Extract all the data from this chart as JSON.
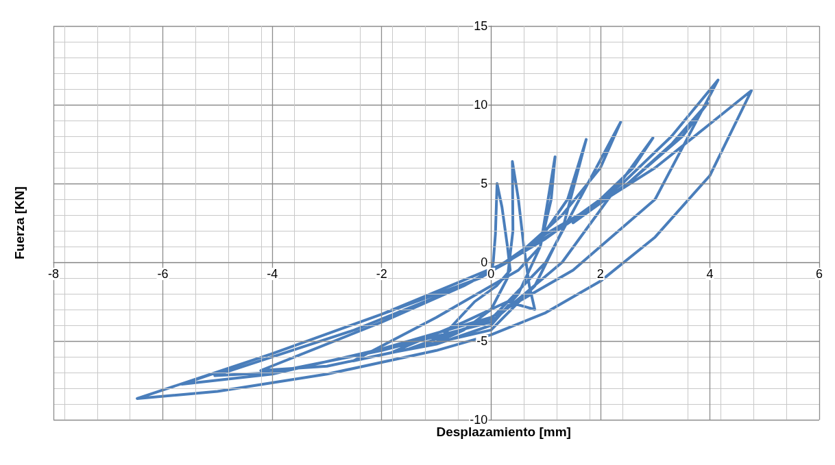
{
  "chart_data": {
    "type": "line",
    "xlabel": "Desplazamiento [mm]",
    "ylabel": "Fuerza [KN]",
    "xlim": [
      -8,
      6
    ],
    "xticks": [
      -8,
      -6,
      -4,
      -2,
      0,
      2,
      4,
      6
    ],
    "ylim": [
      -10,
      15
    ],
    "yticks": [
      -10,
      -5,
      0,
      5,
      10,
      15
    ],
    "grid": true,
    "marker": "none",
    "line_style": "solid",
    "series": [
      {
        "color": "#4a7ebb",
        "x": [
          0,
          0.04,
          0.08,
          0.11,
          0.2,
          0.3,
          0.35,
          0.1,
          -0.3,
          -1.0,
          -0.5,
          0,
          0.3,
          0.4,
          0.39,
          0.5,
          0.6,
          0.7,
          0.8,
          0.3,
          -0.5,
          -1.83,
          -1,
          0,
          0.5,
          0.9,
          1.17,
          1.1,
          0.9,
          0.5,
          0,
          -1,
          -2.52,
          -1.5,
          0,
          0.8,
          1.3,
          1.74,
          1.4,
          0.9,
          0.3,
          -0.5,
          -2,
          -4.21,
          -3,
          -1.5,
          0,
          1,
          2.37,
          2,
          1.3,
          0.5,
          -0.5,
          -2.5,
          -5.05,
          -4,
          -2,
          0,
          1.3,
          2.96,
          2.6,
          2.0,
          1.5,
          2.5,
          3.3,
          3.96,
          3.5,
          2.5,
          1.2,
          0.15,
          -2,
          -4,
          -5.65,
          -4,
          -2,
          0,
          1.5,
          3,
          4.15,
          3.3,
          2.4,
          1,
          -0.2,
          -2,
          -4,
          -6.47,
          -5,
          -3,
          -1,
          0,
          1,
          2,
          3,
          4,
          4.76,
          3.9,
          3,
          2,
          1,
          0.5,
          0
        ],
        "values": [
          -0.7,
          0,
          1.8,
          5.0,
          3.5,
          1,
          -0.5,
          -1.5,
          -2.5,
          -5.1,
          -4.3,
          -3,
          -1,
          2,
          6.4,
          4,
          1,
          -1.5,
          -3,
          -2.5,
          -3.8,
          -5.74,
          -5.2,
          -4,
          -2,
          1,
          6.7,
          4,
          1,
          -0.5,
          -1.5,
          -3.5,
          -6.26,
          -5.5,
          -4.3,
          -1.5,
          2,
          7.8,
          4,
          1.5,
          0,
          -1.5,
          -3.8,
          -6.87,
          -6.6,
          -5.5,
          -3.6,
          0,
          8.9,
          6,
          3,
          0.5,
          -1.5,
          -4.3,
          -7.2,
          -7,
          -5.6,
          -3.8,
          0,
          7.9,
          6,
          4,
          2.5,
          5,
          7.5,
          10.1,
          8,
          5,
          2,
          -0.2,
          -3.3,
          -5.8,
          -7.74,
          -7.1,
          -5.5,
          -3.5,
          -0.5,
          4,
          11.57,
          8,
          5,
          1.5,
          -1.0,
          -3.3,
          -5.8,
          -8.65,
          -8.2,
          -7.1,
          -5.6,
          -4.6,
          -3.2,
          -1.2,
          1.6,
          5.5,
          10.9,
          8.5,
          6,
          3.8,
          1.8,
          0.6,
          -0.6
        ]
      }
    ]
  }
}
